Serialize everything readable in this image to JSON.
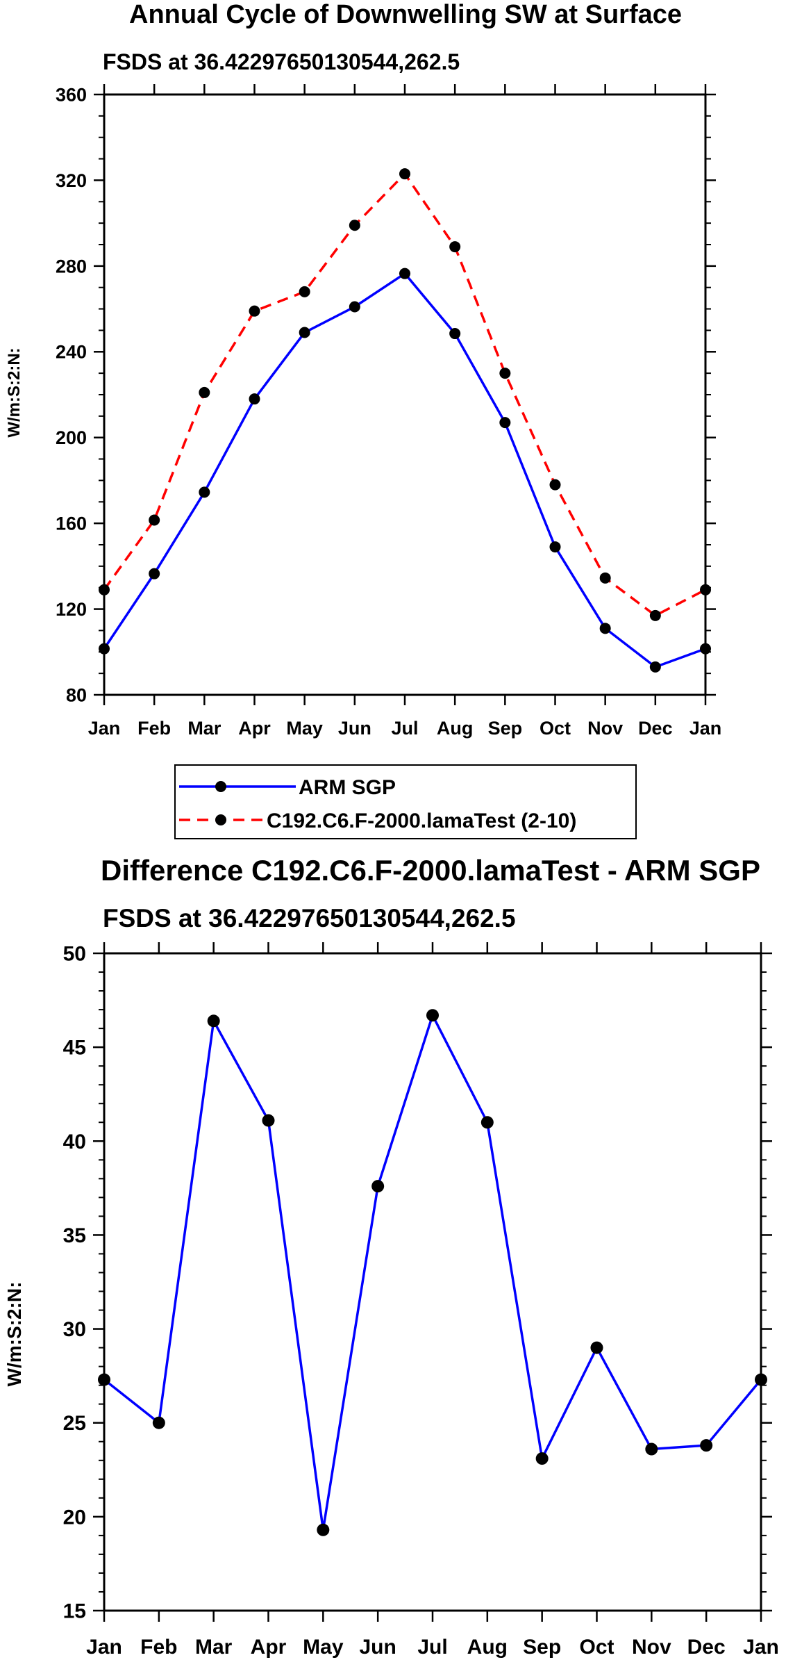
{
  "chart_data": [
    {
      "type": "line",
      "title": "Annual Cycle of Downwelling SW at Surface",
      "subtitle": "FSDS at 36.42297650130544,262.5",
      "ylabel": "W/m:S:2:N:",
      "xlabel": "",
      "categories": [
        "Jan",
        "Feb",
        "Mar",
        "Apr",
        "May",
        "Jun",
        "Jul",
        "Aug",
        "Sep",
        "Oct",
        "Nov",
        "Dec",
        "Jan"
      ],
      "ylim": [
        80,
        360
      ],
      "yticks": [
        80,
        120,
        160,
        200,
        240,
        280,
        320,
        360
      ],
      "series": [
        {
          "name": "ARM SGP",
          "color": "#0000ff",
          "dash": "solid",
          "values": [
            101.5,
            136.5,
            174.5,
            218,
            249,
            261,
            276.5,
            248.5,
            207,
            149,
            111,
            93,
            101.5
          ]
        },
        {
          "name": "C192.C6.F-2000.lamaTest (2-10)",
          "color": "#ff0000",
          "dash": "dashed",
          "values": [
            129,
            161.5,
            221,
            259,
            268,
            299,
            323,
            289,
            230,
            178,
            134.5,
            117,
            129
          ]
        }
      ],
      "legend": {
        "position": "bottom-center"
      }
    },
    {
      "type": "line",
      "title": "Difference C192.C6.F-2000.lamaTest - ARM SGP",
      "subtitle": "FSDS at 36.42297650130544,262.5",
      "ylabel": "W/m:S:2:N:",
      "xlabel": "",
      "categories": [
        "Jan",
        "Feb",
        "Mar",
        "Apr",
        "May",
        "Jun",
        "Jul",
        "Aug",
        "Sep",
        "Oct",
        "Nov",
        "Dec",
        "Jan"
      ],
      "ylim": [
        15,
        50
      ],
      "yticks": [
        15,
        20,
        25,
        30,
        35,
        40,
        45,
        50
      ],
      "series": [
        {
          "name": "Difference",
          "color": "#0000ff",
          "dash": "solid",
          "values": [
            27.3,
            25,
            46.4,
            41.1,
            19.3,
            37.6,
            46.7,
            41,
            23.1,
            29,
            23.6,
            23.8,
            27.3
          ]
        }
      ]
    }
  ]
}
